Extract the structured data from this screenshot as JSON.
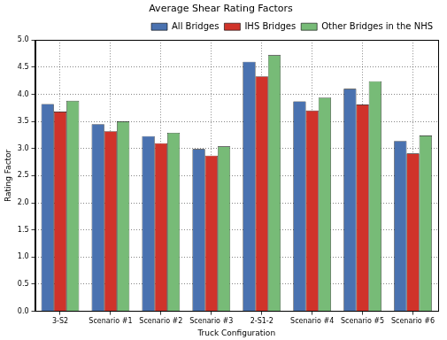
{
  "chart_data": {
    "type": "bar",
    "title": "Average Shear Rating Factors",
    "x_label": "Truck Configuration",
    "y_label": "Rating Factor",
    "categories": [
      "3-S2",
      "Scenario #1",
      "Scenario #2",
      "Scenario #3",
      "2-S1-2",
      "Scenario #4",
      "Scenario #5",
      "Scenario #6"
    ],
    "series": [
      {
        "name": "All Bridges",
        "color": "#4a72b0",
        "values": [
          3.82,
          3.45,
          3.23,
          2.99,
          4.6,
          3.87,
          4.1,
          3.14
        ]
      },
      {
        "name": "IHS Bridges",
        "color": "#d0332a",
        "values": [
          3.68,
          3.32,
          3.1,
          2.87,
          4.33,
          3.7,
          3.81,
          2.91
        ]
      },
      {
        "name": "Other Bridges in the NHS",
        "color": "#77bb77",
        "values": [
          3.88,
          3.5,
          3.29,
          3.04,
          4.72,
          3.94,
          4.24,
          3.24
        ]
      }
    ],
    "ylim": [
      0,
      5
    ],
    "yticks": [
      {
        "value": 0,
        "label": "0.0"
      },
      0.5,
      {
        "value": 1,
        "label": "1.0"
      },
      1.5,
      {
        "value": 2,
        "label": "2.0"
      },
      2.5,
      {
        "value": 3,
        "label": "3.0"
      },
      3.5,
      {
        "value": 4,
        "label": "4.0"
      },
      4.5,
      {
        "value": 5,
        "label": "5.0"
      }
    ],
    "grid": true,
    "legend": "upper right"
  }
}
